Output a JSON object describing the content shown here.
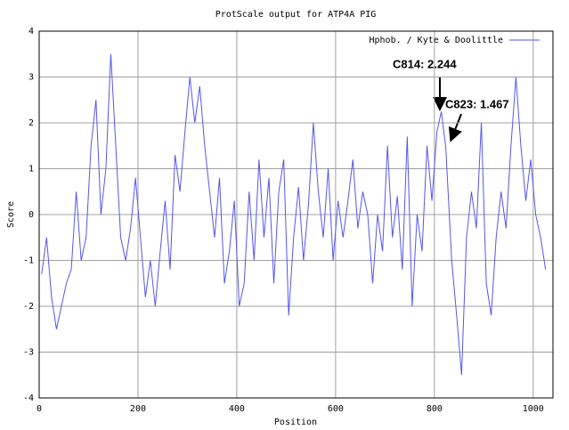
{
  "chart_data": {
    "type": "line",
    "title": "ProtScale output for ATP4A PIG",
    "x_label": "Position",
    "y_label": "Score",
    "xlim": [
      0,
      1040
    ],
    "ylim": [
      -4,
      4
    ],
    "xticks": [
      0,
      200,
      400,
      600,
      800,
      1000
    ],
    "yticks": [
      -4,
      -3,
      -2,
      -1,
      0,
      1,
      2,
      3,
      4
    ],
    "grid": true,
    "legend": "top-right",
    "x": [
      5,
      15,
      25,
      35,
      45,
      55,
      65,
      75,
      85,
      95,
      105,
      115,
      125,
      135,
      145,
      155,
      165,
      175,
      185,
      195,
      205,
      215,
      225,
      235,
      245,
      255,
      265,
      275,
      285,
      295,
      305,
      315,
      325,
      335,
      345,
      355,
      365,
      375,
      385,
      395,
      405,
      415,
      425,
      435,
      445,
      455,
      465,
      475,
      485,
      495,
      505,
      515,
      525,
      535,
      545,
      555,
      565,
      575,
      585,
      595,
      605,
      615,
      625,
      635,
      645,
      655,
      665,
      675,
      685,
      695,
      705,
      715,
      725,
      735,
      745,
      755,
      765,
      775,
      785,
      795,
      805,
      814,
      823,
      835,
      845,
      855,
      865,
      875,
      885,
      895,
      905,
      915,
      925,
      935,
      945,
      955,
      965,
      975,
      985,
      995,
      1005,
      1015,
      1025
    ],
    "series": [
      {
        "name": "Hphob. / Kyte & Doolittle",
        "color": "#5555ee",
        "values": [
          -1.3,
          -0.5,
          -1.8,
          -2.5,
          -2.0,
          -1.5,
          -1.2,
          0.5,
          -1.0,
          -0.5,
          1.5,
          2.5,
          0.0,
          1.0,
          3.5,
          1.5,
          -0.5,
          -1.0,
          -0.3,
          0.8,
          -0.5,
          -1.8,
          -1.0,
          -2.0,
          -0.8,
          0.3,
          -1.2,
          1.3,
          0.5,
          1.8,
          3.0,
          2.0,
          2.8,
          1.5,
          0.5,
          -0.5,
          0.8,
          -1.5,
          -0.8,
          0.3,
          -2.0,
          -1.5,
          0.5,
          -1.0,
          1.2,
          -0.5,
          0.8,
          -1.5,
          0.5,
          1.2,
          -2.2,
          -0.5,
          0.6,
          -1.0,
          0.2,
          2.0,
          0.5,
          -0.5,
          1.0,
          -1.0,
          0.3,
          -0.5,
          0.3,
          1.2,
          -0.3,
          0.5,
          0.0,
          -1.5,
          0.0,
          -0.8,
          1.5,
          -0.5,
          0.4,
          -1.2,
          1.7,
          -2.0,
          0.0,
          -0.8,
          1.5,
          0.3,
          1.8,
          2.244,
          1.467,
          -1.0,
          -2.2,
          -3.5,
          -0.5,
          0.5,
          -0.3,
          2.0,
          -1.5,
          -2.2,
          -0.5,
          0.5,
          -0.3,
          1.5,
          3.0,
          1.5,
          0.3,
          1.2,
          0.0,
          -0.5,
          -1.2
        ]
      }
    ],
    "annotations": [
      "C814: 2.244",
      "C823: 1.467"
    ]
  }
}
